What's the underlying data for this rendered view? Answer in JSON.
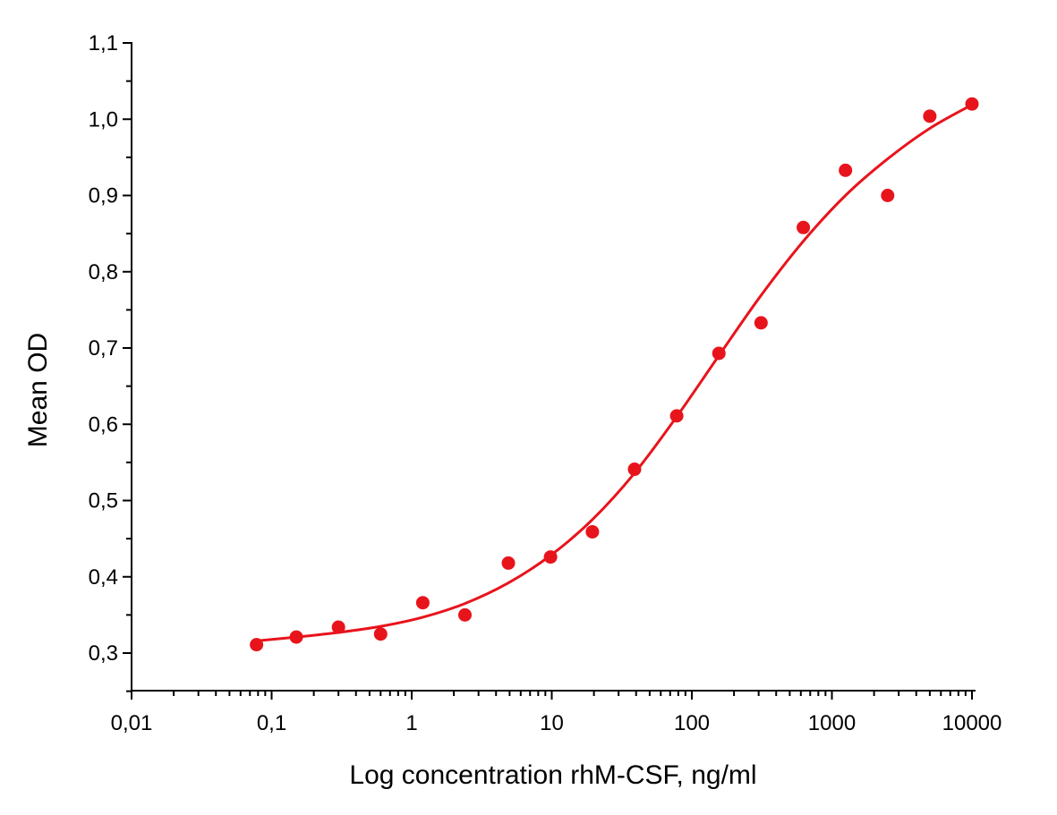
{
  "chart_data": {
    "type": "scatter",
    "title": "",
    "xlabel": "Log concentration rhM-CSF, ng/ml",
    "ylabel": "Mean OD",
    "x_scale": "log",
    "xlim": [
      0.01,
      10000
    ],
    "ylim": [
      0.25,
      1.1
    ],
    "x_ticks": [
      0.01,
      0.1,
      1,
      10,
      100,
      1000,
      10000
    ],
    "x_tick_labels": [
      "0,01",
      "0,1",
      "1",
      "10",
      "100",
      "1000",
      "10000"
    ],
    "y_ticks": [
      0.3,
      0.4,
      0.5,
      0.6,
      0.7,
      0.8,
      0.9,
      1.0,
      1.1
    ],
    "y_tick_labels": [
      "0,3",
      "0,4",
      "0,5",
      "0,6",
      "0,7",
      "0,8",
      "0,9",
      "1,0",
      "1,1"
    ],
    "grid": false,
    "legend": "none",
    "color": "#e8141c",
    "series": [
      {
        "type": "scatter",
        "x": [
          0.078,
          0.15,
          0.3,
          0.6,
          1.2,
          2.4,
          4.9,
          9.8,
          19.5,
          39,
          78,
          156,
          312,
          625,
          1250,
          2500,
          5000,
          10000
        ],
        "y": [
          0.311,
          0.321,
          0.334,
          0.325,
          0.366,
          0.35,
          0.418,
          0.426,
          0.459,
          0.541,
          0.611,
          0.693,
          0.733,
          0.858,
          0.933,
          0.9,
          1.004,
          1.02
        ]
      },
      {
        "type": "line",
        "x": [
          0.078,
          0.15,
          0.3,
          0.6,
          1.2,
          2.4,
          4.9,
          9.8,
          19.5,
          39,
          78,
          156,
          312,
          625,
          1250,
          2500,
          5000,
          10000
        ],
        "y": [
          0.316,
          0.321,
          0.327,
          0.335,
          0.347,
          0.365,
          0.392,
          0.428,
          0.475,
          0.536,
          0.61,
          0.69,
          0.769,
          0.84,
          0.9,
          0.948,
          0.988,
          1.019
        ]
      }
    ]
  }
}
